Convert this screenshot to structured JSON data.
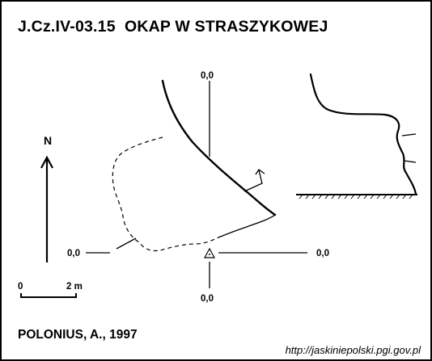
{
  "title": "J.Cz.IV-03.15  OKAP W STRASZYKOWEJ",
  "author": "POLONIUS, A., 1997",
  "source": "http://jaskiniepolski.pgi.gov.pl",
  "north_label": "N",
  "scale_bar": {
    "start_label": "0",
    "end_label": "2 m"
  },
  "grid_labels": {
    "top": "0,0",
    "left": "0,0",
    "right": "0,0",
    "bottom": "0,0"
  },
  "icons": {
    "survey_station": "triangle-station-icon",
    "north": "north-arrow-icon"
  }
}
